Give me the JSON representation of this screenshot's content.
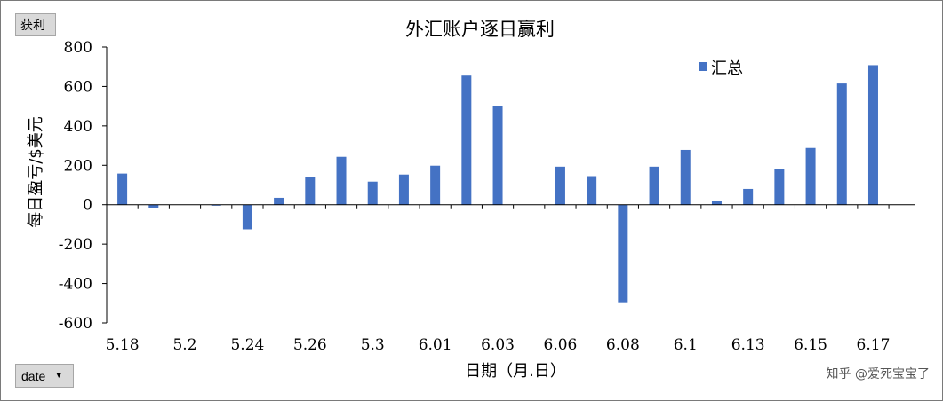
{
  "fields": {
    "profit_label": "获利",
    "date_label": "date",
    "date_caret": "▼"
  },
  "watermark": "知乎 @爱死宝宝了",
  "chart_data": {
    "type": "bar",
    "title": "外汇账户逐日赢利",
    "xlabel": "日期（月.日）",
    "ylabel": "每日盈亏/$美元",
    "ylim": [
      -600,
      800
    ],
    "yticks": [
      800,
      600,
      400,
      200,
      0,
      -200,
      -400,
      -600
    ],
    "ytick_labels": [
      "800",
      "600",
      "400",
      "200",
      "0",
      "-200",
      "-400",
      "-600"
    ],
    "grid": false,
    "legend_position": "top-right",
    "bar_color": "#4472c4",
    "series": [
      {
        "name": "汇总",
        "values": [
          158,
          -18,
          0,
          -5,
          -125,
          35,
          140,
          243,
          117,
          153,
          198,
          655,
          500,
          0,
          193,
          145,
          -495,
          193,
          278,
          20,
          80,
          183,
          288,
          615,
          708
        ]
      }
    ],
    "tick_labels": [
      {
        "index": 0,
        "label": "5.18"
      },
      {
        "index": 2,
        "label": "5.2"
      },
      {
        "index": 4,
        "label": "5.24"
      },
      {
        "index": 6,
        "label": "5.26"
      },
      {
        "index": 8,
        "label": "5.3"
      },
      {
        "index": 10,
        "label": "6.01"
      },
      {
        "index": 12,
        "label": "6.03"
      },
      {
        "index": 14,
        "label": "6.06"
      },
      {
        "index": 16,
        "label": "6.08"
      },
      {
        "index": 18,
        "label": "6.1"
      },
      {
        "index": 20,
        "label": "6.13"
      },
      {
        "index": 22,
        "label": "6.15"
      },
      {
        "index": 24,
        "label": "6.17"
      }
    ]
  }
}
